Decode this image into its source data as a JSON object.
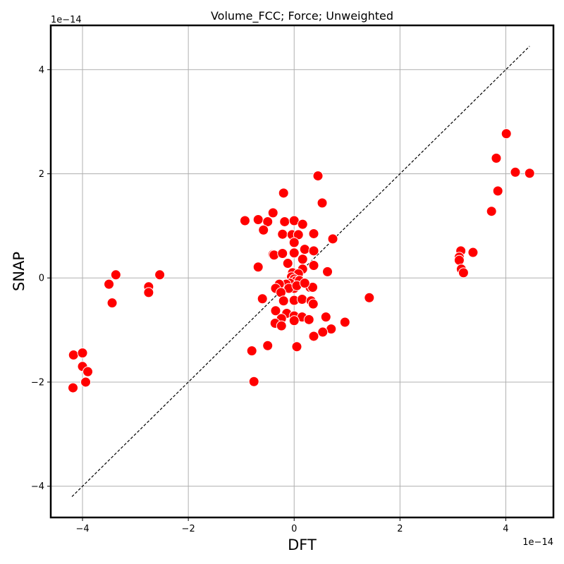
{
  "chart_data": {
    "type": "scatter",
    "title": "Volume_FCC; Force; Unweighted",
    "xlabel": "DFT",
    "ylabel": "SNAP",
    "x_offset_label": "1e−14",
    "y_offset_label": "1e−14",
    "xlim": [
      -4.6,
      4.9
    ],
    "ylim": [
      -4.6,
      4.85
    ],
    "xticks": [
      -4,
      -2,
      0,
      2,
      4
    ],
    "yticks": [
      -4,
      -2,
      0,
      2,
      4
    ],
    "xtick_labels": [
      "−4",
      "−2",
      "0",
      "2",
      "4"
    ],
    "ytick_labels": [
      "−4",
      "−2",
      "0",
      "2",
      "4"
    ],
    "grid": true,
    "point_color": "#ff0000",
    "point_edge_color": "#ffffff",
    "reference_line": {
      "from": [
        -4.2,
        -4.2
      ],
      "to": [
        4.45,
        4.45
      ],
      "style": "dashed",
      "color": "#000000"
    },
    "points": [
      [
        -4.17,
        -1.48
      ],
      [
        -4.0,
        -1.44
      ],
      [
        -4.0,
        -1.7
      ],
      [
        -3.9,
        -1.8
      ],
      [
        -4.18,
        -2.11
      ],
      [
        -3.94,
        -2.0
      ],
      [
        -3.5,
        -0.12
      ],
      [
        -3.37,
        0.06
      ],
      [
        -3.44,
        -0.48
      ],
      [
        -2.75,
        -0.17
      ],
      [
        -2.75,
        -0.28
      ],
      [
        -2.54,
        0.06
      ],
      [
        -0.93,
        1.1
      ],
      [
        -0.68,
        1.12
      ],
      [
        -0.5,
        1.08
      ],
      [
        -0.4,
        1.25
      ],
      [
        -0.58,
        0.92
      ],
      [
        -0.2,
        1.63
      ],
      [
        -0.18,
        1.08
      ],
      [
        0.0,
        1.1
      ],
      [
        0.16,
        1.03
      ],
      [
        0.45,
        1.96
      ],
      [
        0.53,
        1.44
      ],
      [
        -0.22,
        0.84
      ],
      [
        -0.04,
        0.83
      ],
      [
        0.08,
        0.83
      ],
      [
        0.37,
        0.85
      ],
      [
        0.73,
        0.75
      ],
      [
        0.0,
        0.68
      ],
      [
        -0.4,
        0.45
      ],
      [
        -0.38,
        0.44
      ],
      [
        -0.22,
        0.47
      ],
      [
        0.0,
        0.48
      ],
      [
        0.2,
        0.55
      ],
      [
        0.37,
        0.52
      ],
      [
        -0.68,
        0.21
      ],
      [
        -0.12,
        0.28
      ],
      [
        0.16,
        0.36
      ],
      [
        0.37,
        0.24
      ],
      [
        0.16,
        0.17
      ],
      [
        0.63,
        0.12
      ],
      [
        -0.03,
        0.1
      ],
      [
        0.08,
        0.08
      ],
      [
        -0.05,
        0.02
      ],
      [
        0.0,
        -0.02
      ],
      [
        0.03,
        -0.06
      ],
      [
        -0.08,
        -0.1
      ],
      [
        0.1,
        -0.05
      ],
      [
        -0.15,
        -0.12
      ],
      [
        0.0,
        -0.2
      ],
      [
        -0.28,
        -0.12
      ],
      [
        -0.35,
        -0.2
      ],
      [
        -0.1,
        -0.2
      ],
      [
        0.05,
        -0.15
      ],
      [
        0.3,
        -0.18
      ],
      [
        0.35,
        -0.18
      ],
      [
        -0.25,
        -0.28
      ],
      [
        0.2,
        -0.1
      ],
      [
        -0.6,
        -0.4
      ],
      [
        -0.2,
        -0.44
      ],
      [
        0.0,
        -0.43
      ],
      [
        0.15,
        -0.41
      ],
      [
        0.32,
        -0.44
      ],
      [
        0.36,
        -0.5
      ],
      [
        1.42,
        -0.38
      ],
      [
        -0.35,
        -0.63
      ],
      [
        -0.14,
        -0.68
      ],
      [
        0.0,
        -0.73
      ],
      [
        0.15,
        -0.75
      ],
      [
        -0.24,
        -0.78
      ],
      [
        0.28,
        -0.8
      ],
      [
        0.6,
        -0.75
      ],
      [
        0.0,
        -0.82
      ],
      [
        -0.36,
        -0.87
      ],
      [
        -0.24,
        -0.92
      ],
      [
        0.96,
        -0.85
      ],
      [
        0.7,
        -0.98
      ],
      [
        0.54,
        -1.04
      ],
      [
        0.37,
        -1.12
      ],
      [
        -0.5,
        -1.3
      ],
      [
        0.05,
        -1.32
      ],
      [
        -0.8,
        -1.4
      ],
      [
        -0.76,
        -1.99
      ],
      [
        3.15,
        0.52
      ],
      [
        3.12,
        0.4
      ],
      [
        3.12,
        0.34
      ],
      [
        3.16,
        0.17
      ],
      [
        3.2,
        0.1
      ],
      [
        3.38,
        0.49
      ],
      [
        3.73,
        1.28
      ],
      [
        3.85,
        1.67
      ],
      [
        3.82,
        2.3
      ],
      [
        4.01,
        2.77
      ],
      [
        4.18,
        2.03
      ],
      [
        4.45,
        2.01
      ]
    ]
  }
}
